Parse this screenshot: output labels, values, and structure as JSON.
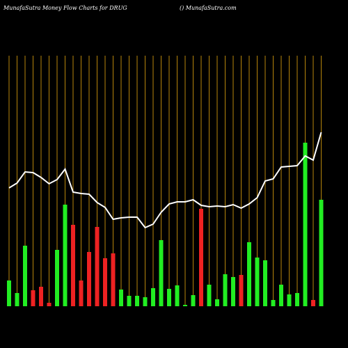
{
  "chart_data": {
    "type": "bar",
    "title": "MunafaSutra  Money Flow  Charts for DRUG",
    "subtitle": "() MunafaSutra.com",
    "categories": [
      null,
      null,
      null,
      null,
      null,
      null,
      null,
      null,
      null,
      null,
      null,
      null,
      null,
      null,
      null,
      null,
      null,
      null,
      null,
      null,
      null,
      null,
      null,
      null,
      null,
      null,
      null,
      null,
      null,
      null,
      null,
      null,
      null,
      null,
      null,
      null,
      null,
      null,
      null,
      null
    ],
    "values": [
      37,
      19,
      87,
      23,
      28,
      5,
      81,
      146,
      117,
      37,
      78,
      114,
      69,
      76,
      24,
      15,
      15,
      13,
      26,
      95,
      25,
      30,
      2,
      16,
      140,
      31,
      10,
      46,
      42,
      45,
      92,
      70,
      66,
      9,
      31,
      17,
      19,
      235,
      9,
      153
    ],
    "colors": [
      "#22ee22",
      "#22ee22",
      "#22ee22",
      "#ee2222",
      "#ee2222",
      "#ee2222",
      "#22ee22",
      "#22ee22",
      "#ee2222",
      "#ee2222",
      "#ee2222",
      "#ee2222",
      "#ee2222",
      "#ee2222",
      "#22ee22",
      "#22ee22",
      "#22ee22",
      "#22ee22",
      "#22ee22",
      "#22ee22",
      "#22ee22",
      "#22ee22",
      "#22ee22",
      "#22ee22",
      "#ee2222",
      "#22ee22",
      "#22ee22",
      "#22ee22",
      "#22ee22",
      "#ee2222",
      "#22ee22",
      "#22ee22",
      "#22ee22",
      "#22ee22",
      "#22ee22",
      "#22ee22",
      "#22ee22",
      "#22ee22",
      "#ee2222",
      "#22ee22"
    ],
    "line": {
      "color": "#ffffff",
      "values": [
        170,
        177,
        193,
        192,
        185,
        176,
        182,
        197,
        164,
        162,
        161,
        149,
        142,
        125,
        127,
        128,
        128,
        113,
        118,
        135,
        147,
        150,
        150,
        153,
        145,
        143,
        144,
        143,
        146,
        141,
        147,
        156,
        180,
        183,
        200,
        201,
        202,
        216,
        210,
        250
      ]
    },
    "ylim": [
      0,
      360
    ],
    "grid": true,
    "grid_color": "#b8860b"
  }
}
